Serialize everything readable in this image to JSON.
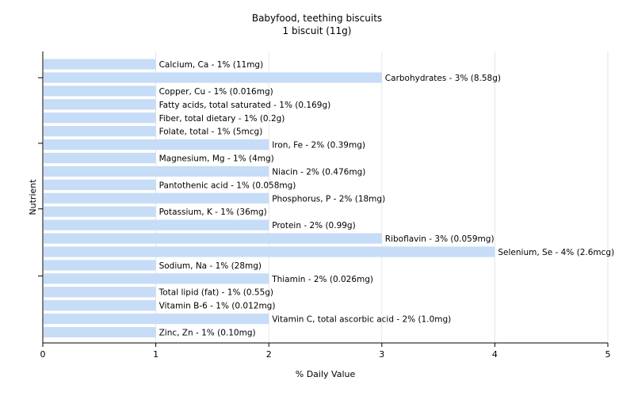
{
  "chart_data": {
    "type": "bar",
    "orientation": "horizontal",
    "title": "Babyfood, teething biscuits",
    "subtitle": "1 biscuit (11g)",
    "xlabel": "% Daily Value",
    "ylabel": "Nutrient",
    "xlim": [
      0,
      5
    ],
    "xticks": [
      "0",
      "1",
      "2",
      "3",
      "4",
      "5"
    ],
    "grid": true,
    "bar_color": "#c6dcf7",
    "categories": [
      "Calcium, Ca",
      "Carbohydrates",
      "Copper, Cu",
      "Fatty acids, total saturated",
      "Fiber, total dietary",
      "Folate, total",
      "Iron, Fe",
      "Magnesium, Mg",
      "Niacin",
      "Pantothenic acid",
      "Phosphorus, P",
      "Potassium, K",
      "Protein",
      "Riboflavin",
      "Selenium, Se",
      "Sodium, Na",
      "Thiamin",
      "Total lipid (fat)",
      "Vitamin B-6",
      "Vitamin C, total ascorbic acid",
      "Zinc, Zn"
    ],
    "values": [
      1,
      3,
      1,
      1,
      1,
      1,
      2,
      1,
      2,
      1,
      2,
      1,
      2,
      3,
      4,
      1,
      2,
      1,
      1,
      2,
      1
    ],
    "labels": [
      "Calcium, Ca - 1% (11mg)",
      "Carbohydrates - 3% (8.58g)",
      "Copper, Cu - 1% (0.016mg)",
      "Fatty acids, total saturated - 1% (0.169g)",
      "Fiber, total dietary - 1% (0.2g)",
      "Folate, total - 1% (5mcg)",
      "Iron, Fe - 2% (0.39mg)",
      "Magnesium, Mg - 1% (4mg)",
      "Niacin - 2% (0.476mg)",
      "Pantothenic acid - 1% (0.058mg)",
      "Phosphorus, P - 2% (18mg)",
      "Potassium, K - 1% (36mg)",
      "Protein - 2% (0.99g)",
      "Riboflavin - 3% (0.059mg)",
      "Selenium, Se - 4% (2.6mcg)",
      "Sodium, Na - 1% (28mg)",
      "Thiamin - 2% (0.026mg)",
      "Total lipid (fat) - 1% (0.55g)",
      "Vitamin B-6 - 1% (0.012mg)",
      "Vitamin C, total ascorbic acid - 2% (1.0mg)",
      "Zinc, Zn - 1% (0.10mg)"
    ]
  }
}
